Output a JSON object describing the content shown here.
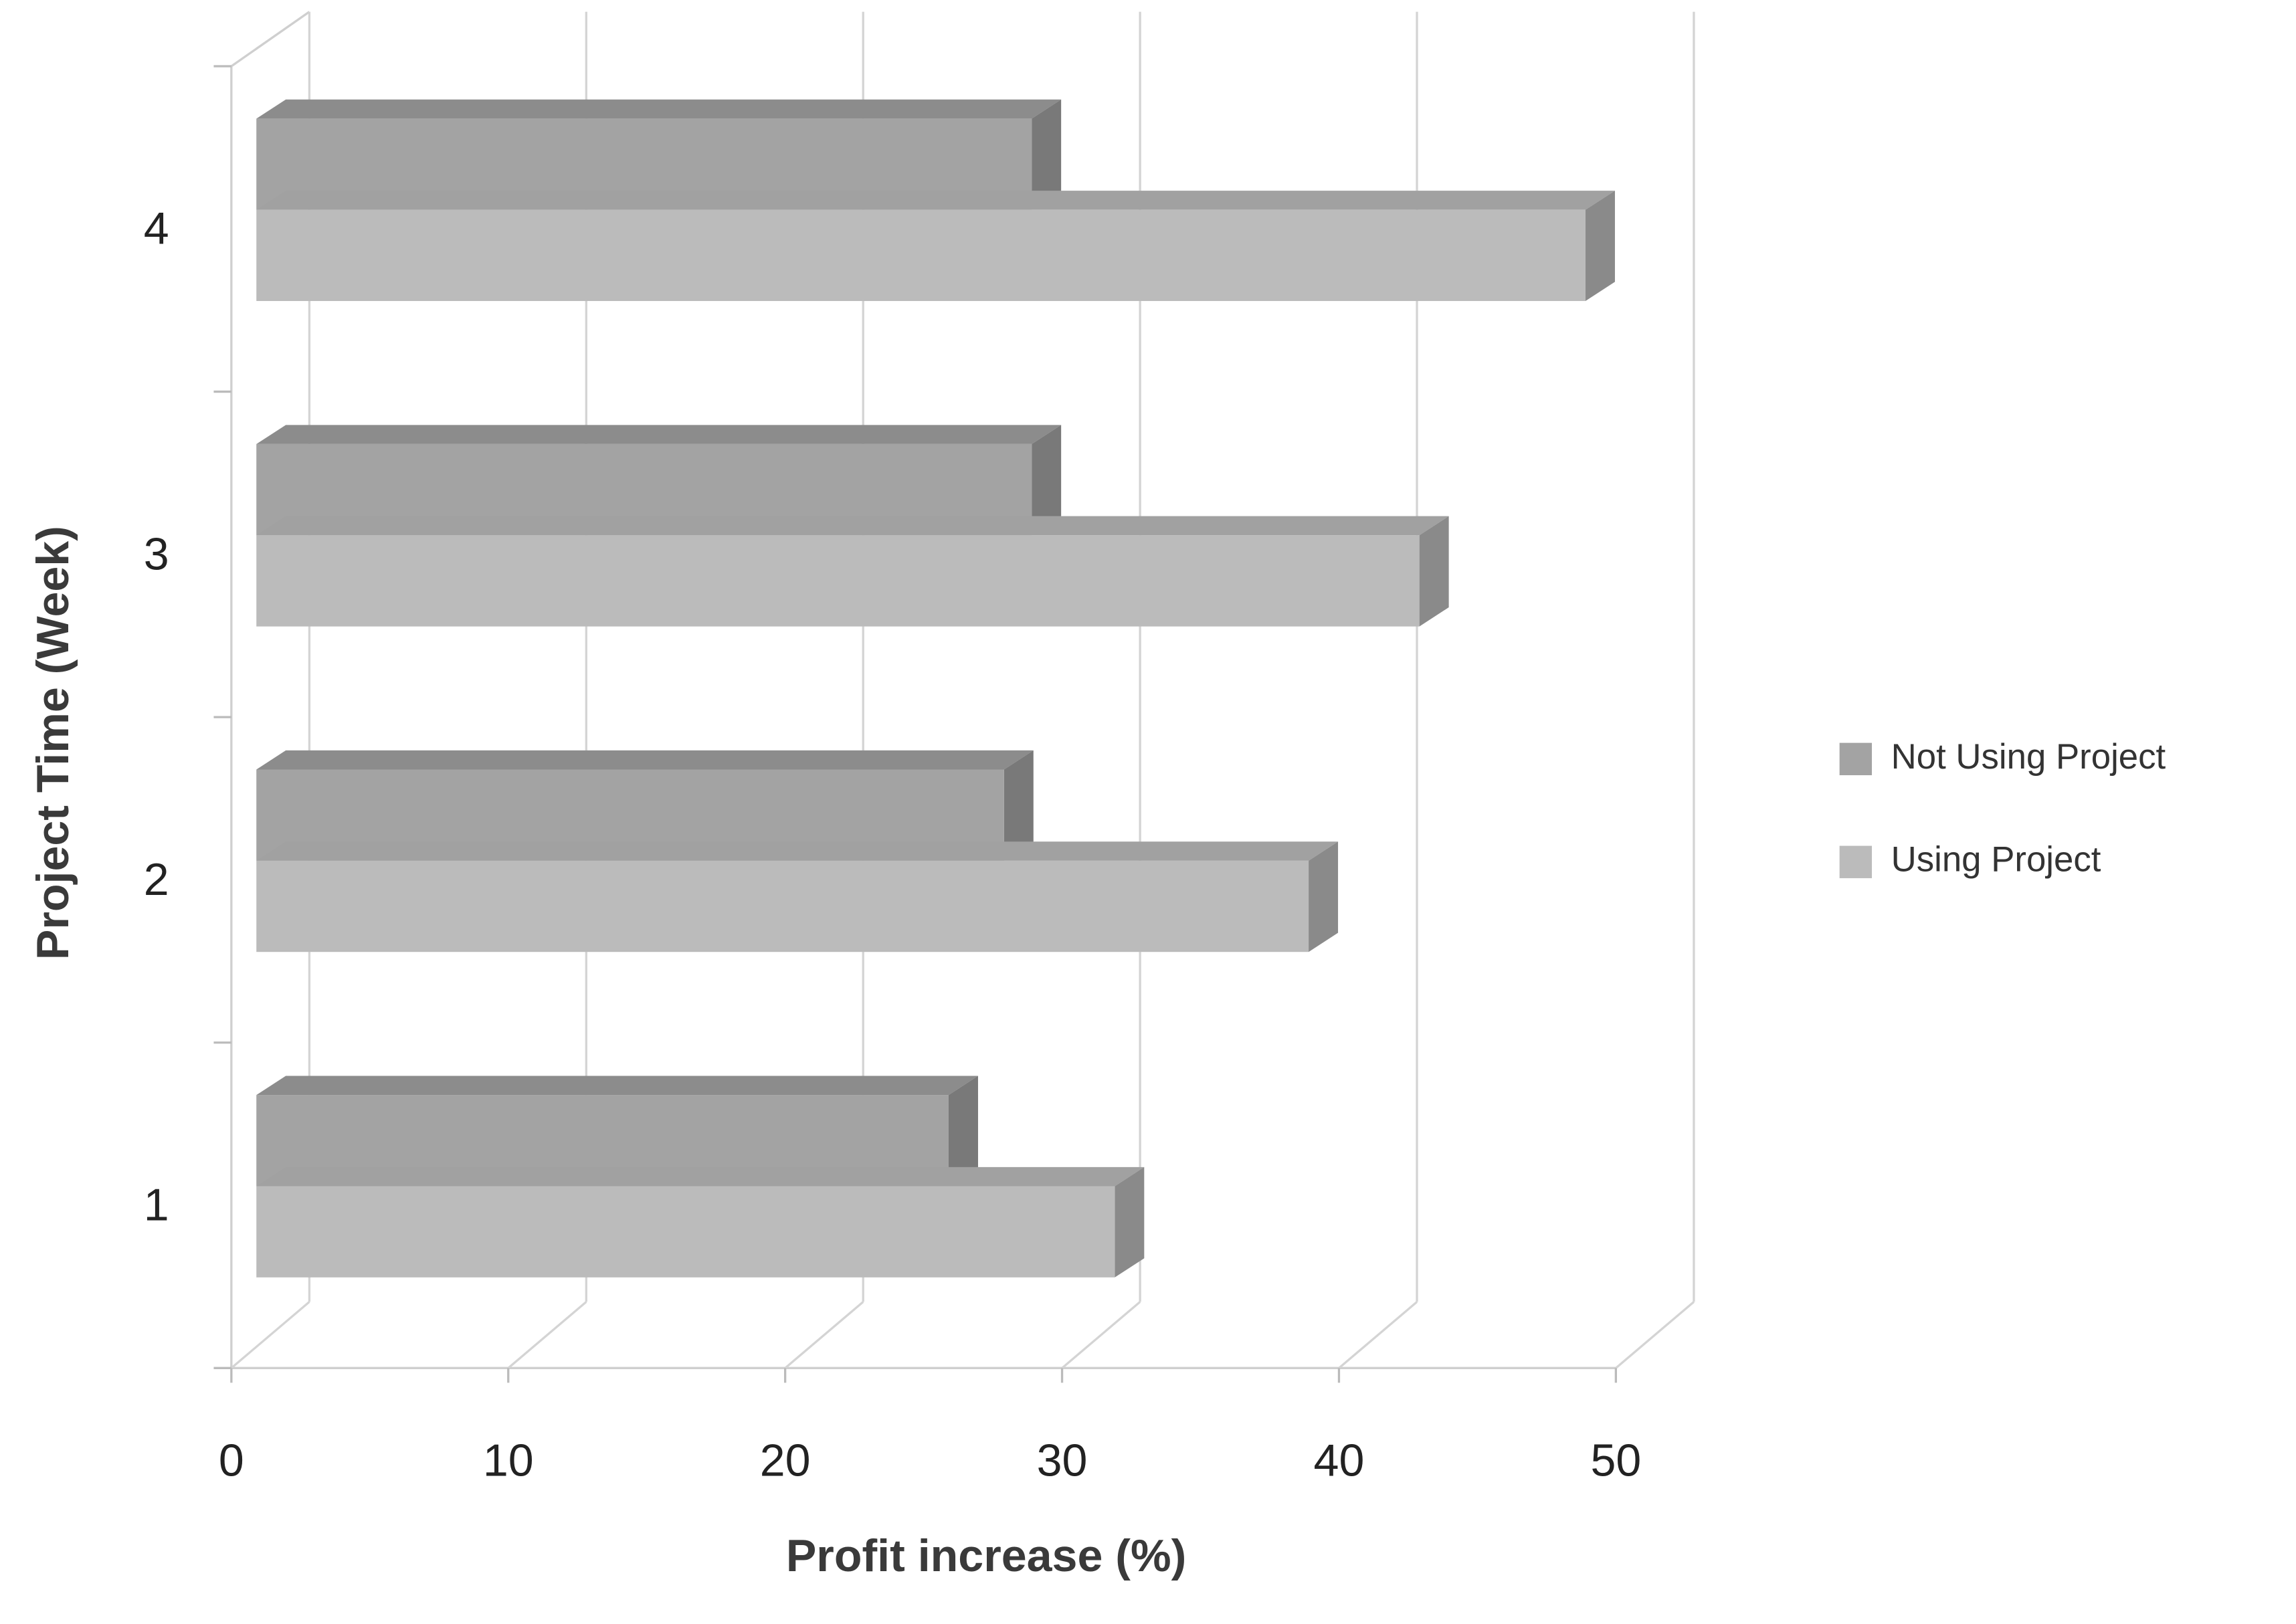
{
  "chart_data": {
    "type": "bar",
    "orientation": "horizontal",
    "three_d": true,
    "x_label": "Profit increase (%)",
    "y_label": "Project Time (Week)",
    "categories": [
      "1",
      "2",
      "3",
      "4"
    ],
    "series": [
      {
        "name": "Not Using Project",
        "color": "#a3a3a3",
        "values": [
          25,
          27,
          28,
          28
        ]
      },
      {
        "name": "Using Project",
        "color": "#bbbbbb",
        "values": [
          31,
          38,
          42,
          48
        ]
      }
    ],
    "xlim": [
      0,
      50
    ],
    "xticks": [
      0,
      10,
      20,
      30,
      40,
      50
    ],
    "grid": true,
    "legend": "right"
  }
}
